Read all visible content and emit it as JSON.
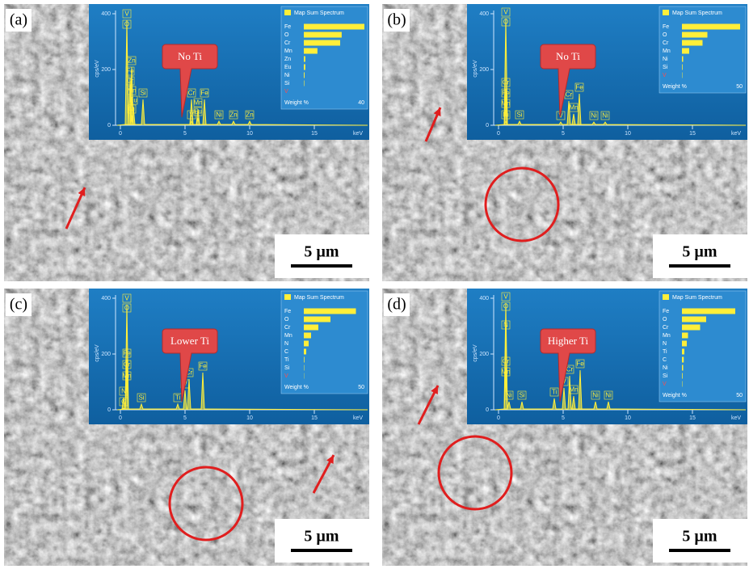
{
  "panels": [
    {
      "label": "(a)",
      "callout": "No Ti",
      "scale_bar": "5 µm",
      "spectrum": {
        "legend_title": "Map Sum Spectrum",
        "y_axis_label": "cps/eV",
        "x_axis_label": "keV",
        "yticks": [
          0,
          200,
          400
        ],
        "xticks": [
          0,
          5,
          10,
          15
        ],
        "peaks": [
          "V",
          "O",
          "Zn",
          "Fe",
          "Cr",
          "Mn",
          "Eu",
          "Ni",
          "Si",
          "V",
          "Cr",
          "Fe",
          "Mn",
          "Eu",
          "Ni",
          "Zn",
          "Zn"
        ],
        "elements": [
          "Fe",
          "O",
          "Cr",
          "Mn",
          "Zn",
          "Eu",
          "Ni",
          "Si",
          "V"
        ],
        "weights": [
          40,
          25,
          24,
          9,
          1,
          1,
          0.5,
          0.3,
          0
        ],
        "weight_label": "Weight %",
        "weight_max": 40
      }
    },
    {
      "label": "(b)",
      "callout": "No Ti",
      "scale_bar": "5 µm",
      "spectrum": {
        "legend_title": "Map Sum Spectrum",
        "y_axis_label": "cps/eV",
        "x_axis_label": "keV",
        "yticks": [
          0,
          200,
          400
        ],
        "xticks": [
          0,
          5,
          10,
          15
        ],
        "peaks": [
          "V",
          "O",
          "Cr",
          "Fe",
          "Mn",
          "Ni",
          "Si",
          "V",
          "Cr",
          "Fe",
          "Mn",
          "Ni",
          "Ni"
        ],
        "elements": [
          "Fe",
          "O",
          "Cr",
          "Mn",
          "Ni",
          "Si",
          "V"
        ],
        "weights": [
          48,
          21,
          17,
          6,
          1,
          0.5,
          0.3
        ],
        "weight_label": "Weight %",
        "weight_max": 50
      }
    },
    {
      "label": "(c)",
      "callout": "Lower Ti",
      "scale_bar": "5 µm",
      "spectrum": {
        "legend_title": "Map Sum Spectrum",
        "y_axis_label": "cps/eV",
        "x_axis_label": "keV",
        "yticks": [
          0,
          200,
          400
        ],
        "xticks": [
          0,
          5,
          10,
          15
        ],
        "peaks": [
          "V",
          "O",
          "Fe",
          "Cr",
          "Mn",
          "N",
          "C",
          "Si",
          "Ti",
          "V",
          "Cr",
          "Fe"
        ],
        "elements": [
          "Fe",
          "O",
          "Cr",
          "Mn",
          "N",
          "C",
          "Ti",
          "Si",
          "V"
        ],
        "weights": [
          43,
          22,
          12,
          6,
          4,
          2,
          0.5,
          0.3,
          0.2
        ],
        "weight_label": "Weight %",
        "weight_max": 50
      }
    },
    {
      "label": "(d)",
      "callout": "Higher Ti",
      "scale_bar": "5 µm",
      "spectrum": {
        "legend_title": "Map Sum Spectrum",
        "y_axis_label": "cps/eV",
        "x_axis_label": "keV",
        "yticks": [
          0,
          200,
          400
        ],
        "xticks": [
          0,
          5,
          10,
          15
        ],
        "peaks": [
          "V",
          "O",
          "N",
          "Cr",
          "Mn",
          "Ni",
          "Si",
          "Ti",
          "V",
          "Cr",
          "Fe",
          "Mn",
          "Ni",
          "Ni"
        ],
        "elements": [
          "Fe",
          "O",
          "Cr",
          "Mn",
          "N",
          "Ti",
          "C",
          "Ni",
          "Si",
          "V"
        ],
        "weights": [
          44,
          20,
          15,
          5,
          4,
          2,
          1.5,
          1,
          0.5,
          0.3
        ],
        "weight_label": "Weight %",
        "weight_max": 50
      }
    }
  ]
}
